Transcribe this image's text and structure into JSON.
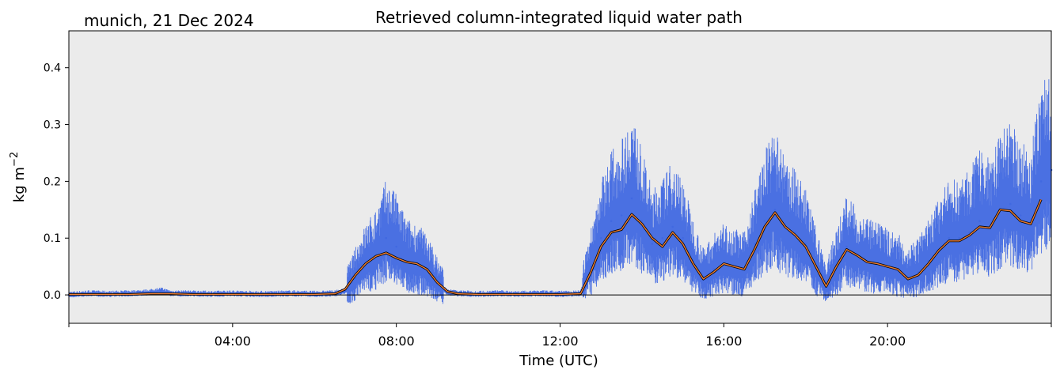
{
  "chart_data": {
    "type": "line",
    "title": "Retrieved column-integrated liquid water path",
    "subtitle": "munich, 21 Dec 2024",
    "xlabel": "Time (UTC)",
    "ylabel": "kg m",
    "ylabel_superscript": "−2",
    "x_unit": "hours UTC",
    "xlim": [
      0,
      24
    ],
    "ylim": [
      -0.05,
      0.465
    ],
    "x_ticks": [
      {
        "value": 4,
        "label": "04:00"
      },
      {
        "value": 8,
        "label": "08:00"
      },
      {
        "value": 12,
        "label": "12:00"
      },
      {
        "value": 16,
        "label": "16:00"
      },
      {
        "value": 20,
        "label": "20:00"
      }
    ],
    "x_minor_ticks": [
      0,
      24
    ],
    "y_ticks": [
      {
        "value": 0.0,
        "label": "0.0"
      },
      {
        "value": 0.1,
        "label": "0.1"
      },
      {
        "value": 0.2,
        "label": "0.2"
      },
      {
        "value": 0.3,
        "label": "0.3"
      },
      {
        "value": 0.4,
        "label": "0.4"
      }
    ],
    "zero_line": 0,
    "grid": false,
    "legend": "none",
    "colors": {
      "background": "#ebebeb",
      "raw": "#4169e1",
      "smoothed": "#ed7d31",
      "smoothed_outline": "#000000"
    },
    "series": [
      {
        "kind": "raw",
        "x": [
          0.0,
          0.5,
          1.0,
          1.5,
          2.0,
          2.25,
          2.5,
          3.0,
          3.5,
          4.0,
          4.5,
          5.0,
          5.5,
          6.0,
          6.5,
          6.75,
          7.0,
          7.25,
          7.5,
          7.75,
          8.0,
          8.25,
          8.5,
          8.75,
          9.0,
          9.25,
          9.5,
          10.0,
          10.5,
          11.0,
          11.5,
          12.0,
          12.5,
          12.75,
          13.0,
          13.25,
          13.5,
          13.75,
          14.0,
          14.25,
          14.5,
          14.75,
          15.0,
          15.25,
          15.5,
          15.75,
          16.0,
          16.25,
          16.5,
          16.75,
          17.0,
          17.25,
          17.5,
          17.75,
          18.0,
          18.25,
          18.5,
          18.75,
          19.0,
          19.25,
          19.5,
          19.75,
          20.0,
          20.25,
          20.5,
          20.75,
          21.0,
          21.25,
          21.5,
          21.75,
          22.0,
          22.25,
          22.5,
          22.75,
          23.0,
          23.25,
          23.5,
          23.75,
          24.0
        ],
        "y": [
          0.0,
          0.002,
          0.001,
          0.002,
          0.004,
          0.007,
          0.002,
          0.002,
          0.001,
          0.002,
          0.001,
          0.001,
          0.002,
          0.001,
          0.002,
          0.006,
          0.03,
          0.055,
          0.07,
          0.1,
          0.085,
          0.06,
          0.055,
          0.045,
          0.02,
          0.004,
          0.002,
          0.001,
          0.002,
          0.001,
          0.002,
          0.001,
          0.002,
          0.05,
          0.1,
          0.13,
          0.14,
          0.17,
          0.13,
          0.09,
          0.1,
          0.12,
          0.1,
          0.06,
          0.03,
          0.045,
          0.055,
          0.05,
          0.045,
          0.09,
          0.13,
          0.15,
          0.12,
          0.11,
          0.09,
          0.05,
          0.015,
          0.05,
          0.085,
          0.07,
          0.06,
          0.055,
          0.05,
          0.045,
          0.03,
          0.04,
          0.06,
          0.08,
          0.1,
          0.1,
          0.11,
          0.13,
          0.12,
          0.15,
          0.16,
          0.14,
          0.13,
          0.2,
          0.22
        ]
      },
      {
        "kind": "smoothed",
        "x": [
          0.0,
          0.5,
          1.0,
          1.5,
          2.0,
          2.5,
          3.0,
          4.0,
          5.0,
          6.0,
          6.5,
          6.75,
          7.0,
          7.25,
          7.5,
          7.75,
          8.0,
          8.25,
          8.5,
          8.75,
          9.0,
          9.25,
          9.5,
          10.0,
          11.0,
          12.0,
          12.5,
          12.75,
          13.0,
          13.25,
          13.5,
          13.75,
          14.0,
          14.25,
          14.5,
          14.75,
          15.0,
          15.25,
          15.5,
          15.75,
          16.0,
          16.25,
          16.5,
          16.75,
          17.0,
          17.25,
          17.5,
          17.75,
          18.0,
          18.25,
          18.5,
          18.75,
          19.0,
          19.25,
          19.5,
          19.75,
          20.0,
          20.25,
          20.5,
          20.75,
          21.0,
          21.25,
          21.5,
          21.75,
          22.0,
          22.25,
          22.5,
          22.75,
          23.0,
          23.25,
          23.5,
          23.75
        ],
        "y": [
          0.001,
          0.001,
          0.001,
          0.001,
          0.002,
          0.002,
          0.001,
          0.001,
          0.001,
          0.001,
          0.002,
          0.01,
          0.035,
          0.055,
          0.068,
          0.074,
          0.065,
          0.058,
          0.055,
          0.045,
          0.022,
          0.006,
          0.002,
          0.001,
          0.001,
          0.001,
          0.002,
          0.04,
          0.085,
          0.11,
          0.115,
          0.142,
          0.125,
          0.1,
          0.085,
          0.11,
          0.09,
          0.055,
          0.028,
          0.04,
          0.055,
          0.05,
          0.045,
          0.08,
          0.12,
          0.145,
          0.12,
          0.105,
          0.085,
          0.05,
          0.015,
          0.05,
          0.08,
          0.07,
          0.058,
          0.055,
          0.05,
          0.045,
          0.028,
          0.035,
          0.055,
          0.078,
          0.095,
          0.095,
          0.105,
          0.12,
          0.118,
          0.15,
          0.148,
          0.13,
          0.125,
          0.168
        ]
      }
    ]
  }
}
